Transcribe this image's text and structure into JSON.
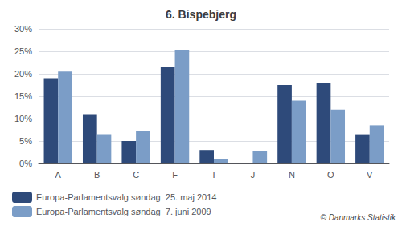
{
  "chart_data": {
    "type": "bar",
    "title": "6. Bispebjerg",
    "categories": [
      "A",
      "B",
      "C",
      "F",
      "I",
      "J",
      "N",
      "O",
      "V"
    ],
    "series": [
      {
        "name": "Europa-Parlamentsvalg søndag  25. maj 2014",
        "color": "#2E4A7A",
        "values": [
          19.0,
          11.0,
          5.0,
          21.5,
          3.0,
          0.0,
          17.5,
          18.0,
          6.5
        ]
      },
      {
        "name": "Europa-Parlamentsvalg søndag  7. juni 2009",
        "color": "#7B9DC7",
        "values": [
          20.5,
          6.5,
          7.2,
          25.2,
          1.0,
          2.7,
          14.0,
          12.0,
          8.5
        ]
      }
    ],
    "ylim": [
      0,
      30
    ],
    "yticks": [
      {
        "value": 0,
        "label": "0%"
      },
      {
        "value": 5,
        "label": "5%"
      },
      {
        "value": 10,
        "label": "10%"
      },
      {
        "value": 15,
        "label": "15%"
      },
      {
        "value": 20,
        "label": "20%"
      },
      {
        "value": 25,
        "label": "25%"
      },
      {
        "value": 30,
        "label": "30%"
      }
    ],
    "grid": true,
    "legend": "lower left",
    "annotations": [
      "© Danmarks Statistik"
    ]
  }
}
